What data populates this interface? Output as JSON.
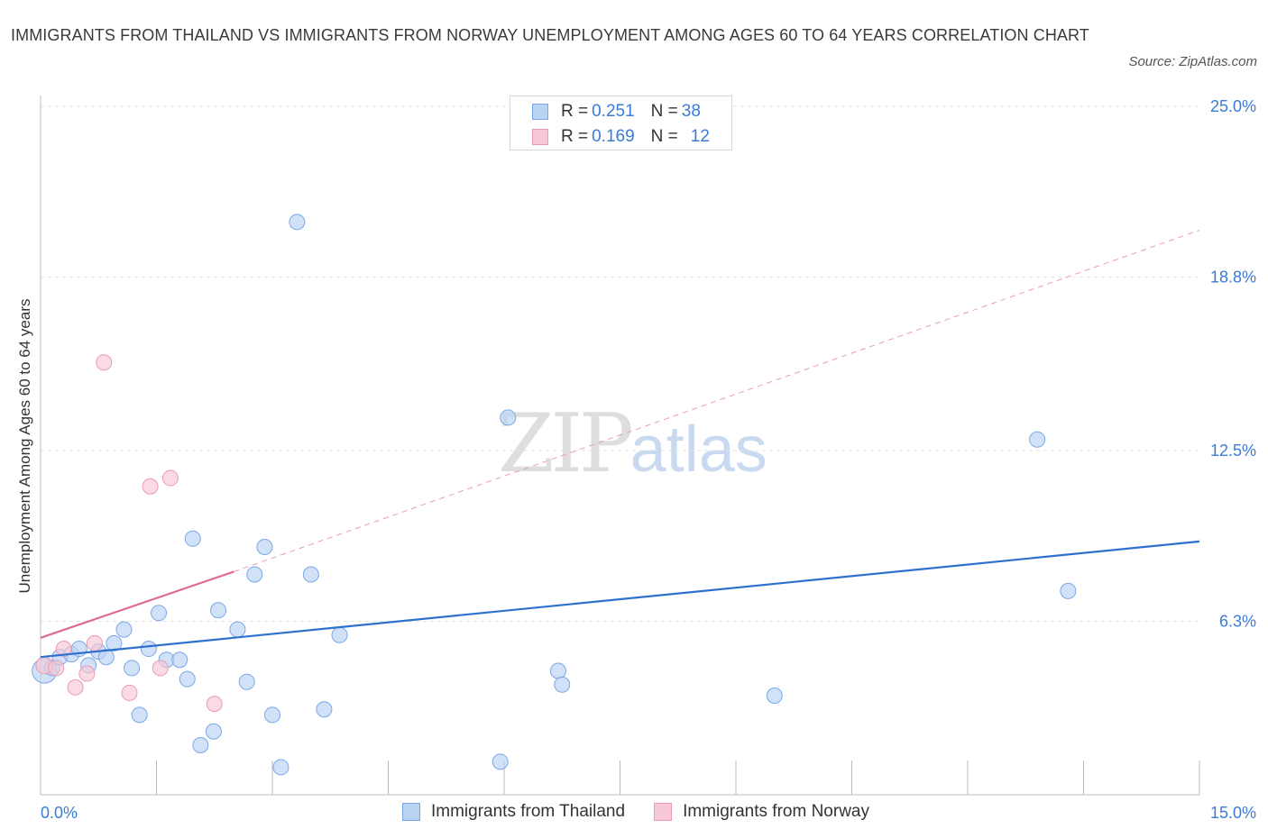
{
  "title": "IMMIGRANTS FROM THAILAND VS IMMIGRANTS FROM NORWAY UNEMPLOYMENT AMONG AGES 60 TO 64 YEARS CORRELATION CHART",
  "source": "Source: ZipAtlas.com",
  "watermark": {
    "zip": "ZIP",
    "atlas": "atlas"
  },
  "legend": {
    "rows": [
      {
        "r_label": "R = ",
        "r_value": "0.251",
        "n_label": "N = ",
        "n_value": "38"
      },
      {
        "r_label": "R = ",
        "r_value": "0.169",
        "n_label": "N = ",
        "n_value": "12"
      }
    ]
  },
  "bottom_legend": [
    "Immigrants from Thailand",
    "Immigrants from Norway"
  ],
  "colors": {
    "thailand_fill": "#b9d3f5",
    "thailand_stroke": "#7aa8e6",
    "thailand_line": "#2f6fd0",
    "norway_fill": "#f8c8d6",
    "norway_stroke": "#eb9ab3",
    "norway_line": "#e06a94",
    "axis_value": "#3a7bd5",
    "grid": "#e3e3e3"
  },
  "chart_data": {
    "type": "scatter",
    "title": "IMMIGRANTS FROM THAILAND VS IMMIGRANTS FROM NORWAY UNEMPLOYMENT AMONG AGES 60 TO 64 YEARS CORRELATION CHART",
    "xlabel": "",
    "ylabel": "Unemployment Among Ages 60 to 64 years",
    "xlim": [
      0,
      15
    ],
    "ylim": [
      0,
      25
    ],
    "x_tick_labels": [
      "0.0%",
      "15.0%"
    ],
    "y_ticks": [
      6.3,
      12.5,
      18.8,
      25.0
    ],
    "y_tick_labels": [
      "6.3%",
      "12.5%",
      "18.8%",
      "25.0%"
    ],
    "series": [
      {
        "name": "Immigrants from Thailand",
        "R": 0.251,
        "N": 38,
        "points": [
          [
            0.05,
            4.5,
            1.6
          ],
          [
            0.15,
            4.6,
            1
          ],
          [
            0.25,
            5.0,
            1
          ],
          [
            0.4,
            5.1,
            1
          ],
          [
            0.5,
            5.3,
            1
          ],
          [
            0.62,
            4.7,
            1
          ],
          [
            0.75,
            5.2,
            1
          ],
          [
            0.85,
            5.0,
            1
          ],
          [
            0.95,
            5.5,
            1
          ],
          [
            1.08,
            6.0,
            1
          ],
          [
            1.18,
            4.6,
            1
          ],
          [
            1.28,
            2.9,
            1
          ],
          [
            1.4,
            5.3,
            1
          ],
          [
            1.53,
            6.6,
            1
          ],
          [
            1.63,
            4.9,
            1
          ],
          [
            1.8,
            4.9,
            1
          ],
          [
            1.9,
            4.2,
            1
          ],
          [
            1.97,
            9.3,
            1
          ],
          [
            2.07,
            1.8,
            1
          ],
          [
            2.24,
            2.3,
            1
          ],
          [
            2.3,
            6.7,
            1
          ],
          [
            2.55,
            6.0,
            1
          ],
          [
            2.67,
            4.1,
            1
          ],
          [
            2.77,
            8.0,
            1
          ],
          [
            2.9,
            9.0,
            1
          ],
          [
            3.0,
            2.9,
            1
          ],
          [
            3.11,
            1.0,
            1
          ],
          [
            3.32,
            20.8,
            1
          ],
          [
            3.5,
            8.0,
            1
          ],
          [
            3.67,
            3.1,
            1
          ],
          [
            3.87,
            5.8,
            1
          ],
          [
            5.95,
            1.2,
            1
          ],
          [
            6.05,
            13.7,
            1
          ],
          [
            6.7,
            4.5,
            1
          ],
          [
            6.75,
            4.0,
            1
          ],
          [
            9.5,
            3.6,
            1
          ],
          [
            12.9,
            12.9,
            1
          ],
          [
            13.3,
            7.4,
            1
          ]
        ],
        "trend": {
          "x": [
            0,
            15
          ],
          "y": [
            5.0,
            9.2
          ],
          "style": "solid"
        }
      },
      {
        "name": "Immigrants from Norway",
        "R": 0.169,
        "N": 12,
        "points": [
          [
            0.05,
            4.7,
            1.1
          ],
          [
            0.2,
            4.6,
            1
          ],
          [
            0.3,
            5.3,
            1
          ],
          [
            0.45,
            3.9,
            1
          ],
          [
            0.6,
            4.4,
            1
          ],
          [
            0.7,
            5.5,
            1
          ],
          [
            0.82,
            15.7,
            1
          ],
          [
            1.15,
            3.7,
            1
          ],
          [
            1.42,
            11.2,
            1
          ],
          [
            1.55,
            4.6,
            1
          ],
          [
            1.68,
            11.5,
            1
          ],
          [
            2.25,
            3.3,
            1
          ]
        ],
        "trend": {
          "x": [
            0,
            2.5
          ],
          "y": [
            5.7,
            8.1
          ],
          "style": "solid"
        },
        "trend_extended": {
          "x": [
            2.5,
            15
          ],
          "y": [
            8.1,
            20.5
          ],
          "style": "dashed"
        }
      }
    ]
  }
}
